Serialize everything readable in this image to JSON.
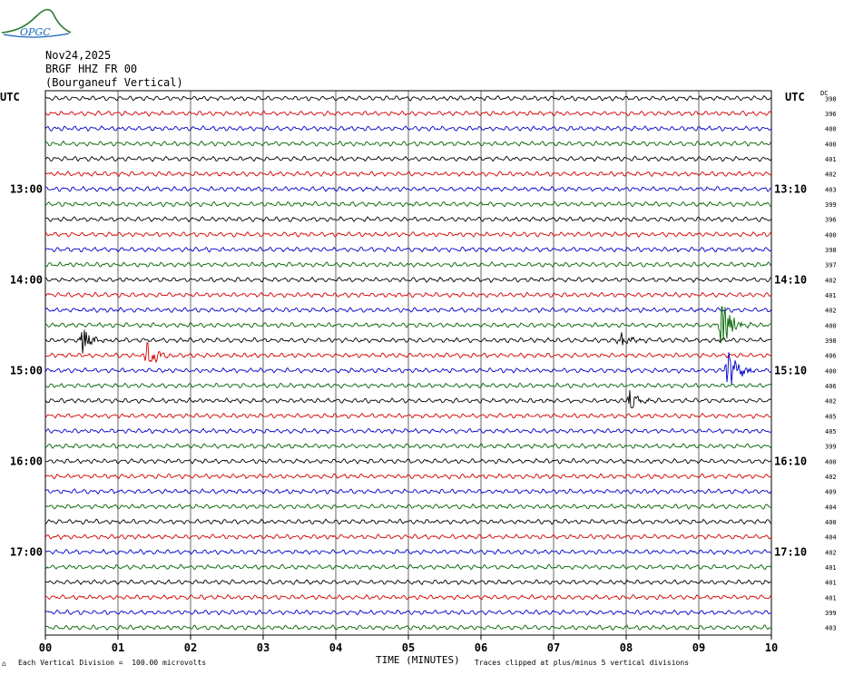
{
  "header": {
    "date": "Nov24,2025",
    "station": "BRGF HHZ FR 00",
    "location": "(Bourganeuf Vertical)"
  },
  "logo": {
    "text": "OPGC"
  },
  "axis": {
    "utc_label_left": "UTC",
    "utc_label_right": "UTC",
    "dc_label": "DC",
    "x_title": "TIME (MINUTES)",
    "x_ticks": [
      "00",
      "01",
      "02",
      "03",
      "04",
      "05",
      "06",
      "07",
      "08",
      "09",
      "10"
    ]
  },
  "footer": {
    "scale_note": "Each Vertical Division =  100.00 microvolts",
    "clip_note": "Traces clipped at plus/minus 5 vertical divisions"
  },
  "colors": {
    "trace_cycle": [
      "#000000",
      "#d40000",
      "#0000c8",
      "#006400"
    ],
    "grid": "#000000"
  },
  "chart_data": {
    "type": "line",
    "title": "",
    "xlabel": "TIME (MINUTES)",
    "xlim": [
      0,
      10
    ],
    "traces_count": 36,
    "trace_minutes": 10,
    "left_hour_labels": [
      {
        "row": 6,
        "text": "13:00"
      },
      {
        "row": 12,
        "text": "14:00"
      },
      {
        "row": 18,
        "text": "15:00"
      },
      {
        "row": 24,
        "text": "16:00"
      },
      {
        "row": 30,
        "text": "17:00"
      }
    ],
    "right_time_labels": [
      {
        "row": 6,
        "text": "13:10"
      },
      {
        "row": 12,
        "text": "14:10"
      },
      {
        "row": 18,
        "text": "15:10"
      },
      {
        "row": 24,
        "text": "16:10"
      },
      {
        "row": 30,
        "text": "17:10"
      }
    ],
    "dc_offsets": [
      398,
      396,
      400,
      400,
      401,
      402,
      403,
      399,
      396,
      400,
      398,
      397,
      402,
      401,
      402,
      400,
      398,
      406,
      400,
      406,
      402,
      405,
      405,
      399,
      400,
      402,
      409,
      404,
      400,
      404,
      402,
      401,
      401,
      401,
      399,
      403
    ],
    "events": [
      {
        "row": 15,
        "minute": 9.3,
        "amplitude": 3.0
      },
      {
        "row": 18,
        "minute": 9.4,
        "amplitude": 2.2
      },
      {
        "row": 16,
        "minute": 0.5,
        "amplitude": 1.3
      },
      {
        "row": 17,
        "minute": 1.4,
        "amplitude": 1.2
      },
      {
        "row": 20,
        "minute": 8.05,
        "amplitude": 1.0
      },
      {
        "row": 16,
        "minute": 7.9,
        "amplitude": 0.9
      }
    ]
  }
}
